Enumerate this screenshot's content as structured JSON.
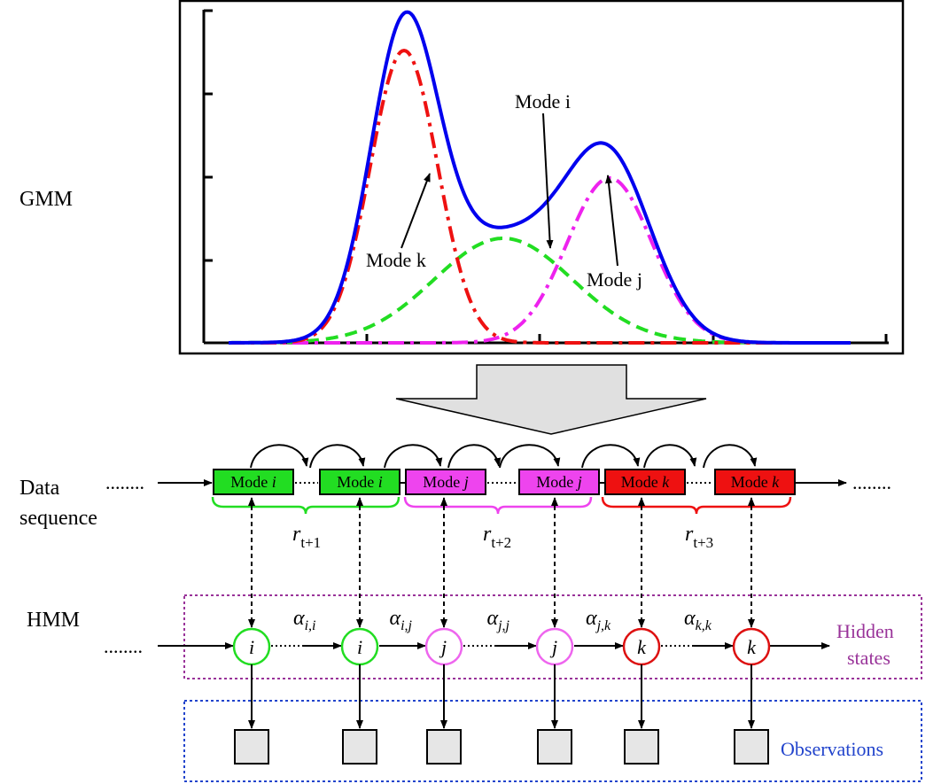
{
  "row_labels": {
    "gmm": "GMM",
    "data_line1": "Data",
    "data_line2": "sequence",
    "hmm": "HMM"
  },
  "gmm_annotations": {
    "mode_i": "Mode i",
    "mode_k": "Mode k",
    "mode_j": "Mode j"
  },
  "sequence_boxes": [
    {
      "prefix": "Mode ",
      "var": "i",
      "mode": "i",
      "color": "#22dd22"
    },
    {
      "prefix": "Mode ",
      "var": "i",
      "mode": "i",
      "color": "#22dd22"
    },
    {
      "prefix": "Mode ",
      "var": "j",
      "mode": "j",
      "color": "#ee44ee"
    },
    {
      "prefix": "Mode ",
      "var": "j",
      "mode": "j",
      "color": "#ee44ee"
    },
    {
      "prefix": "Mode ",
      "var": "k",
      "mode": "k",
      "color": "#ee1111"
    },
    {
      "prefix": "Mode ",
      "var": "k",
      "mode": "k",
      "color": "#ee1111"
    }
  ],
  "brace_labels": [
    {
      "base": "r",
      "sub": "t+1",
      "color": "#22dd22"
    },
    {
      "base": "r",
      "sub": "t+2",
      "color": "#ee44ee"
    },
    {
      "base": "r",
      "sub": "t+3",
      "color": "#ee1111"
    }
  ],
  "hidden_states": [
    {
      "label": "i",
      "color": "#22dd22"
    },
    {
      "label": "i",
      "color": "#22dd22"
    },
    {
      "label": "j",
      "color": "#ee66ee"
    },
    {
      "label": "j",
      "color": "#ee66ee"
    },
    {
      "label": "k",
      "color": "#dd1111"
    },
    {
      "label": "k",
      "color": "#dd1111"
    }
  ],
  "transitions": [
    {
      "base": "α",
      "sub": "i,i"
    },
    {
      "base": "α",
      "sub": "i,j"
    },
    {
      "base": "α",
      "sub": "j,j"
    },
    {
      "base": "α",
      "sub": "j,k"
    },
    {
      "base": "α",
      "sub": "k,k"
    }
  ],
  "hidden_states_label": {
    "line1": "Hidden",
    "line2": "states",
    "color": "#993399"
  },
  "observations_label": {
    "text": "Observations",
    "color": "#2244cc"
  },
  "ellipsis": "........",
  "colors": {
    "mixture": "#0000ee",
    "mode_k": "#ee1111",
    "mode_i": "#22dd22",
    "mode_j": "#ee22ee",
    "hmm_box": "#993399",
    "obs_box": "#2244cc",
    "obs_fill": "#e6e6e6"
  }
}
